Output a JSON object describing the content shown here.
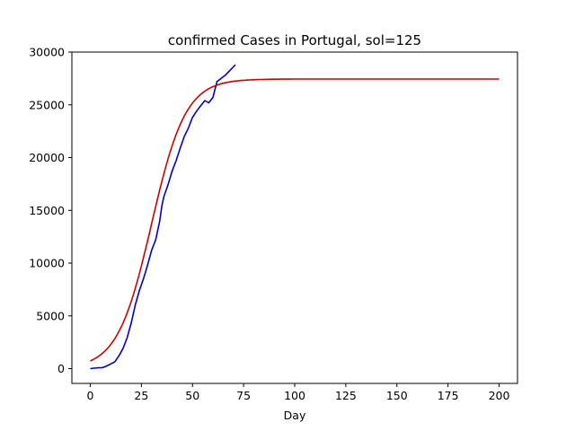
{
  "chart_data": {
    "type": "line",
    "title": "confirmed Cases in Portugal, sol=125",
    "xlabel": "Day",
    "ylabel": "",
    "xlim": [
      -9,
      209
    ],
    "ylim": [
      -1400,
      30000
    ],
    "xticks": [
      0,
      25,
      50,
      75,
      100,
      125,
      150,
      175,
      200
    ],
    "yticks": [
      0,
      5000,
      10000,
      15000,
      20000,
      25000,
      30000
    ],
    "grid": false,
    "legend": "none",
    "series": [
      {
        "color": "#0000cc",
        "x": [
          0,
          2,
          4,
          6,
          8,
          10,
          12,
          14,
          16,
          18,
          20,
          22,
          24,
          26,
          28,
          30,
          32,
          34,
          35,
          36,
          38,
          40,
          42,
          44,
          46,
          48,
          50,
          52,
          54,
          56,
          58,
          60,
          62,
          64,
          66,
          68,
          70,
          71
        ],
        "y": [
          0,
          50,
          80,
          100,
          250,
          450,
          650,
          1200,
          1900,
          2900,
          4300,
          6000,
          7400,
          8500,
          9800,
          11200,
          12200,
          14000,
          15400,
          16300,
          17400,
          18700,
          19700,
          20900,
          22000,
          22800,
          23800,
          24400,
          24900,
          25400,
          25200,
          25700,
          27200,
          27500,
          27800,
          28200,
          28600,
          28800
        ]
      },
      {
        "color": "#d00000",
        "model": "logistic",
        "K": 27450,
        "r": 0.12,
        "t0": 30,
        "x_range": [
          0,
          200
        ]
      }
    ]
  }
}
